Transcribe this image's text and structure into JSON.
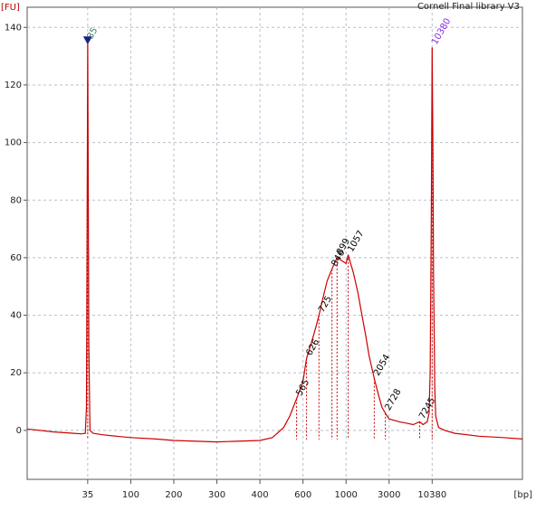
{
  "chart_data": {
    "type": "line",
    "title": "Cornell Final library V3",
    "y_label": "[FU]",
    "x_label": "[bp]",
    "x": [
      8,
      15,
      25,
      30,
      33,
      34,
      35,
      36,
      37,
      40,
      50,
      70,
      100,
      150,
      200,
      300,
      400,
      450,
      500,
      530,
      565,
      600,
      626,
      660,
      700,
      725,
      760,
      800,
      846,
      870,
      899,
      950,
      1000,
      1057,
      1100,
      1200,
      1350,
      1500,
      1650,
      1800,
      2054,
      2300,
      2500,
      2728,
      3000,
      3500,
      4000,
      5000,
      6000,
      7245,
      8000,
      9000,
      9500,
      9800,
      10100,
      10380,
      10600,
      10800,
      11200,
      11500,
      12500,
      15000,
      20000,
      40000,
      80000,
      140000
    ],
    "values": [
      0.5,
      -0.5,
      -1,
      -1.2,
      -1,
      8,
      135,
      30,
      0,
      -1,
      -1.5,
      -2,
      -2.5,
      -3,
      -3.5,
      -4,
      -3.5,
      -2.5,
      1,
      5,
      11,
      17,
      25,
      30,
      36,
      40,
      46,
      52,
      56,
      58,
      60,
      59,
      58,
      61,
      59,
      55,
      48,
      40,
      33,
      26,
      18,
      12,
      8,
      6,
      4,
      3.5,
      3,
      2.5,
      2,
      3,
      2,
      3,
      6,
      20,
      70,
      133,
      100,
      55,
      15,
      5,
      1,
      0,
      -1,
      -2,
      -2.5,
      -3
    ],
    "color": "#cc0000",
    "xlim": [
      8,
      140000
    ],
    "xticks": [
      35,
      100,
      200,
      300,
      400,
      600,
      1000,
      3000,
      10380
    ],
    "ylim": [
      -17,
      147
    ],
    "yticks": [
      0,
      20,
      40,
      60,
      80,
      100,
      120,
      140
    ],
    "grid": true,
    "peaks": [
      {
        "bp": 35,
        "fu": 135,
        "color": "#2e8b57"
      },
      {
        "bp": 565,
        "fu": 11,
        "color": "#000000"
      },
      {
        "bp": 626,
        "fu": 25,
        "color": "#000000"
      },
      {
        "bp": 725,
        "fu": 40,
        "color": "#000000"
      },
      {
        "bp": 846,
        "fu": 56,
        "color": "#000000"
      },
      {
        "bp": 899,
        "fu": 60,
        "color": "#000000"
      },
      {
        "bp": 1057,
        "fu": 61,
        "color": "#000000"
      },
      {
        "bp": 2054,
        "fu": 18,
        "color": "#000000"
      },
      {
        "bp": 2728,
        "fu": 6,
        "color": "#000000"
      },
      {
        "bp": 7245,
        "fu": 3,
        "color": "#000000"
      },
      {
        "bp": 10380,
        "fu": 133,
        "color": "#8a2be2"
      }
    ]
  }
}
